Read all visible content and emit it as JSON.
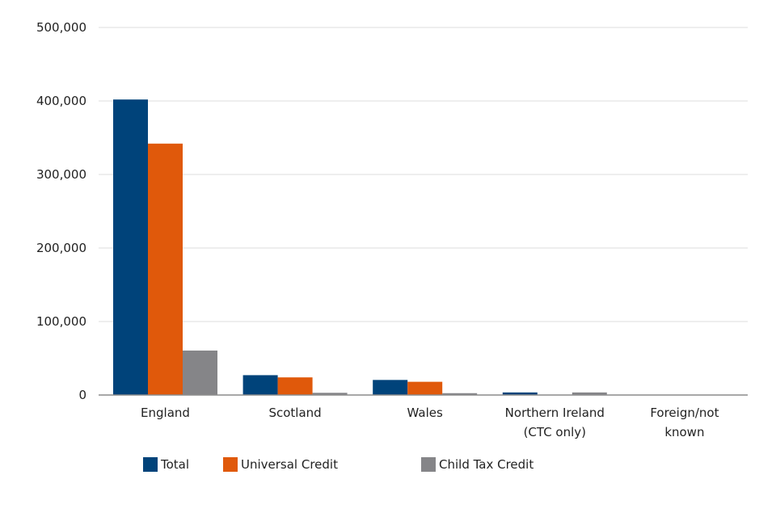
{
  "chart_data": {
    "type": "bar",
    "title": "",
    "xlabel": "",
    "ylabel": "",
    "ylim": [
      0,
      500000
    ],
    "yticks": [
      0,
      100000,
      200000,
      300000,
      400000,
      500000
    ],
    "ytick_labels": [
      "0",
      "100,000",
      "200,000",
      "300,000",
      "400,000",
      "500,000"
    ],
    "grid": true,
    "legend_position": "bottom",
    "categories": [
      [
        "England"
      ],
      [
        "Scotland"
      ],
      [
        "Wales"
      ],
      [
        "Northern Ireland",
        "(CTC only)"
      ],
      [
        "Foreign/not",
        "known"
      ]
    ],
    "series": [
      {
        "name": "Total",
        "color": "#00437a",
        "values": [
          402000,
          27000,
          20500,
          3500,
          500
        ]
      },
      {
        "name": "Universal Credit",
        "color": "#e0590b",
        "values": [
          342000,
          24000,
          18000,
          0,
          300
        ]
      },
      {
        "name": "Child Tax Credit",
        "color": "#858588",
        "values": [
          60500,
          3000,
          2500,
          3500,
          200
        ]
      }
    ]
  }
}
